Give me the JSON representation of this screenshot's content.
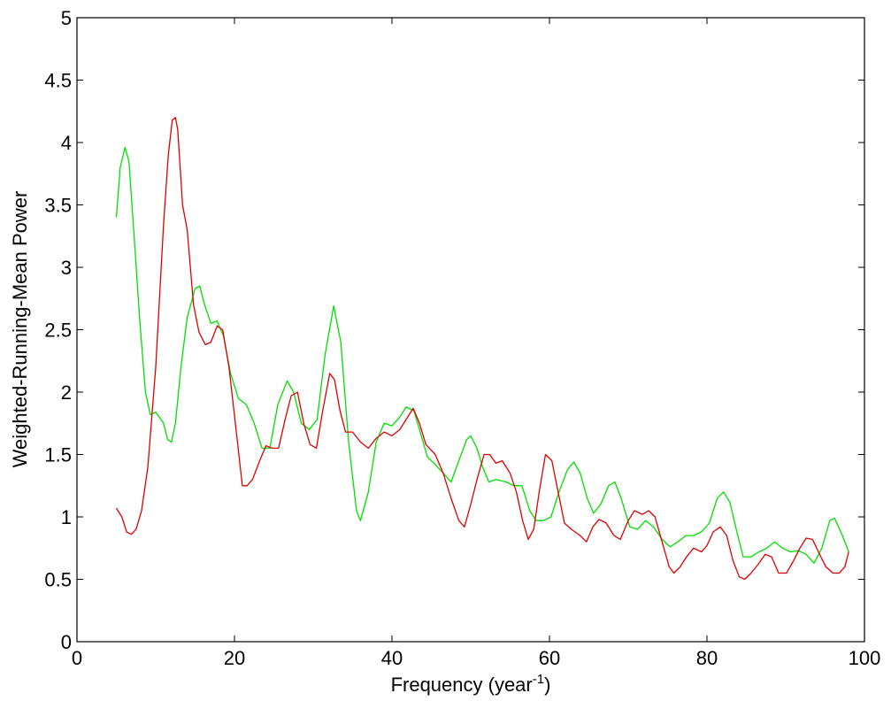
{
  "chart_data": {
    "type": "line",
    "xlabel": {
      "prefix": "Frequency (year",
      "superscript": "-1",
      "suffix": ")"
    },
    "ylabel": "Weighted-Running-Mean Power",
    "xlim": [
      0,
      100
    ],
    "ylim": [
      0,
      5
    ],
    "xticks": [
      0,
      20,
      40,
      60,
      80,
      100
    ],
    "xtick_labels": [
      "0",
      "20",
      "40",
      "60",
      "80",
      "100"
    ],
    "yticks": [
      0,
      0.5,
      1,
      1.5,
      2,
      2.5,
      3,
      3.5,
      4,
      4.5,
      5
    ],
    "ytick_labels": [
      "0",
      "0.5",
      "1",
      "1.5",
      "2",
      "2.5",
      "3",
      "3.5",
      "4",
      "4.5",
      "5"
    ],
    "grid": false,
    "series": [
      {
        "color": "#00e000",
        "points": [
          [
            5,
            3.4
          ],
          [
            5.5,
            3.8
          ],
          [
            6.1,
            3.96
          ],
          [
            6.6,
            3.85
          ],
          [
            7.2,
            3.3
          ],
          [
            8,
            2.55
          ],
          [
            8.7,
            2.0
          ],
          [
            9.3,
            1.82
          ],
          [
            10,
            1.84
          ],
          [
            11,
            1.75
          ],
          [
            11.5,
            1.62
          ],
          [
            12,
            1.6
          ],
          [
            12.5,
            1.75
          ],
          [
            13.2,
            2.2
          ],
          [
            14,
            2.6
          ],
          [
            15,
            2.83
          ],
          [
            15.6,
            2.85
          ],
          [
            16.2,
            2.7
          ],
          [
            17,
            2.55
          ],
          [
            17.8,
            2.57
          ],
          [
            18.6,
            2.45
          ],
          [
            19.5,
            2.15
          ],
          [
            20.5,
            1.95
          ],
          [
            21.5,
            1.9
          ],
          [
            22.5,
            1.75
          ],
          [
            23.5,
            1.55
          ],
          [
            24.5,
            1.55
          ],
          [
            25.5,
            1.9
          ],
          [
            26.7,
            2.09
          ],
          [
            27.5,
            2.0
          ],
          [
            28.5,
            1.75
          ],
          [
            29.5,
            1.7
          ],
          [
            30.5,
            1.78
          ],
          [
            31.5,
            2.3
          ],
          [
            32.6,
            2.69
          ],
          [
            33.5,
            2.4
          ],
          [
            34.5,
            1.6
          ],
          [
            35.5,
            1.05
          ],
          [
            36,
            0.97
          ],
          [
            37,
            1.2
          ],
          [
            38,
            1.6
          ],
          [
            39,
            1.75
          ],
          [
            40,
            1.73
          ],
          [
            41,
            1.8
          ],
          [
            41.8,
            1.88
          ],
          [
            42.8,
            1.85
          ],
          [
            43.5,
            1.7
          ],
          [
            44.5,
            1.48
          ],
          [
            45.5,
            1.42
          ],
          [
            46.5,
            1.35
          ],
          [
            47.5,
            1.28
          ],
          [
            48.5,
            1.45
          ],
          [
            49.5,
            1.62
          ],
          [
            50,
            1.65
          ],
          [
            50.8,
            1.55
          ],
          [
            51.5,
            1.4
          ],
          [
            52.3,
            1.28
          ],
          [
            53.2,
            1.3
          ],
          [
            54.5,
            1.28
          ],
          [
            55.5,
            1.25
          ],
          [
            56.5,
            1.25
          ],
          [
            57.5,
            1.05
          ],
          [
            58.3,
            0.97
          ],
          [
            59.2,
            0.97
          ],
          [
            60.2,
            1.0
          ],
          [
            61.2,
            1.2
          ],
          [
            62.3,
            1.38
          ],
          [
            63.1,
            1.44
          ],
          [
            63.9,
            1.35
          ],
          [
            64.8,
            1.15
          ],
          [
            65.6,
            1.03
          ],
          [
            66.5,
            1.1
          ],
          [
            67.5,
            1.25
          ],
          [
            68.3,
            1.28
          ],
          [
            69.1,
            1.15
          ],
          [
            70.2,
            0.92
          ],
          [
            71.2,
            0.9
          ],
          [
            72.2,
            0.97
          ],
          [
            73.2,
            0.92
          ],
          [
            74.3,
            0.82
          ],
          [
            75.3,
            0.76
          ],
          [
            76.3,
            0.8
          ],
          [
            77.3,
            0.85
          ],
          [
            78.3,
            0.85
          ],
          [
            79.3,
            0.88
          ],
          [
            80.3,
            0.95
          ],
          [
            81.3,
            1.15
          ],
          [
            82.1,
            1.2
          ],
          [
            82.9,
            1.12
          ],
          [
            83.8,
            0.88
          ],
          [
            84.6,
            0.68
          ],
          [
            85.6,
            0.68
          ],
          [
            86.6,
            0.72
          ],
          [
            87.6,
            0.75
          ],
          [
            88.6,
            0.8
          ],
          [
            89.6,
            0.75
          ],
          [
            90.6,
            0.72
          ],
          [
            91.6,
            0.73
          ],
          [
            92.6,
            0.7
          ],
          [
            93.6,
            0.63
          ],
          [
            94.6,
            0.75
          ],
          [
            95.6,
            0.97
          ],
          [
            96.2,
            0.99
          ],
          [
            97.2,
            0.85
          ],
          [
            98,
            0.72
          ]
        ]
      },
      {
        "color": "#e00000",
        "points": [
          [
            5,
            1.07
          ],
          [
            5.7,
            1.0
          ],
          [
            6.3,
            0.88
          ],
          [
            6.9,
            0.86
          ],
          [
            7.5,
            0.9
          ],
          [
            8.2,
            1.05
          ],
          [
            9,
            1.4
          ],
          [
            10,
            2.2
          ],
          [
            11,
            3.35
          ],
          [
            11.6,
            3.9
          ],
          [
            12.1,
            4.18
          ],
          [
            12.5,
            4.2
          ],
          [
            12.8,
            4.1
          ],
          [
            13.4,
            3.5
          ],
          [
            14,
            3.3
          ],
          [
            14.8,
            2.7
          ],
          [
            15.5,
            2.48
          ],
          [
            16.3,
            2.38
          ],
          [
            17,
            2.4
          ],
          [
            17.8,
            2.53
          ],
          [
            18.5,
            2.5
          ],
          [
            19.3,
            2.2
          ],
          [
            20.2,
            1.7
          ],
          [
            21,
            1.25
          ],
          [
            21.6,
            1.25
          ],
          [
            22.3,
            1.3
          ],
          [
            23.2,
            1.45
          ],
          [
            24,
            1.57
          ],
          [
            24.8,
            1.55
          ],
          [
            25.6,
            1.55
          ],
          [
            26.5,
            1.8
          ],
          [
            27.2,
            1.97
          ],
          [
            28,
            2.0
          ],
          [
            28.8,
            1.75
          ],
          [
            29.6,
            1.58
          ],
          [
            30.4,
            1.55
          ],
          [
            31.2,
            1.85
          ],
          [
            32.1,
            2.15
          ],
          [
            32.7,
            2.1
          ],
          [
            33.4,
            1.85
          ],
          [
            34.1,
            1.68
          ],
          [
            35,
            1.68
          ],
          [
            36,
            1.6
          ],
          [
            37,
            1.55
          ],
          [
            38,
            1.63
          ],
          [
            39,
            1.68
          ],
          [
            40,
            1.65
          ],
          [
            41,
            1.7
          ],
          [
            41.8,
            1.78
          ],
          [
            42.7,
            1.87
          ],
          [
            43.5,
            1.75
          ],
          [
            44.3,
            1.58
          ],
          [
            45.5,
            1.5
          ],
          [
            46.5,
            1.35
          ],
          [
            47.5,
            1.15
          ],
          [
            48.5,
            0.97
          ],
          [
            49.2,
            0.92
          ],
          [
            50,
            1.1
          ],
          [
            50.8,
            1.3
          ],
          [
            51.7,
            1.5
          ],
          [
            52.4,
            1.5
          ],
          [
            53.2,
            1.43
          ],
          [
            54,
            1.45
          ],
          [
            55,
            1.35
          ],
          [
            55.8,
            1.2
          ],
          [
            56.6,
            0.97
          ],
          [
            57.3,
            0.82
          ],
          [
            58,
            0.9
          ],
          [
            58.7,
            1.2
          ],
          [
            59.5,
            1.5
          ],
          [
            60.3,
            1.45
          ],
          [
            61.1,
            1.2
          ],
          [
            61.9,
            0.95
          ],
          [
            62.8,
            0.9
          ],
          [
            63.9,
            0.85
          ],
          [
            64.7,
            0.8
          ],
          [
            65.5,
            0.92
          ],
          [
            66.3,
            0.98
          ],
          [
            67.2,
            0.95
          ],
          [
            68.2,
            0.85
          ],
          [
            69,
            0.82
          ],
          [
            70,
            0.97
          ],
          [
            70.8,
            1.05
          ],
          [
            71.8,
            1.02
          ],
          [
            72.6,
            1.05
          ],
          [
            73.4,
            1.0
          ],
          [
            74.3,
            0.8
          ],
          [
            75.2,
            0.6
          ],
          [
            75.8,
            0.55
          ],
          [
            76.6,
            0.6
          ],
          [
            77.4,
            0.68
          ],
          [
            78.3,
            0.75
          ],
          [
            79.3,
            0.72
          ],
          [
            80,
            0.77
          ],
          [
            80.8,
            0.88
          ],
          [
            81.7,
            0.92
          ],
          [
            82.5,
            0.85
          ],
          [
            83.3,
            0.65
          ],
          [
            84.1,
            0.52
          ],
          [
            84.8,
            0.5
          ],
          [
            85.6,
            0.55
          ],
          [
            86.5,
            0.62
          ],
          [
            87.4,
            0.7
          ],
          [
            88.2,
            0.68
          ],
          [
            89.1,
            0.55
          ],
          [
            90.1,
            0.55
          ],
          [
            91,
            0.65
          ],
          [
            91.8,
            0.75
          ],
          [
            92.6,
            0.83
          ],
          [
            93.4,
            0.82
          ],
          [
            94.3,
            0.7
          ],
          [
            95.1,
            0.6
          ],
          [
            96,
            0.55
          ],
          [
            96.8,
            0.55
          ],
          [
            97.5,
            0.6
          ],
          [
            98,
            0.72
          ]
        ]
      }
    ]
  }
}
